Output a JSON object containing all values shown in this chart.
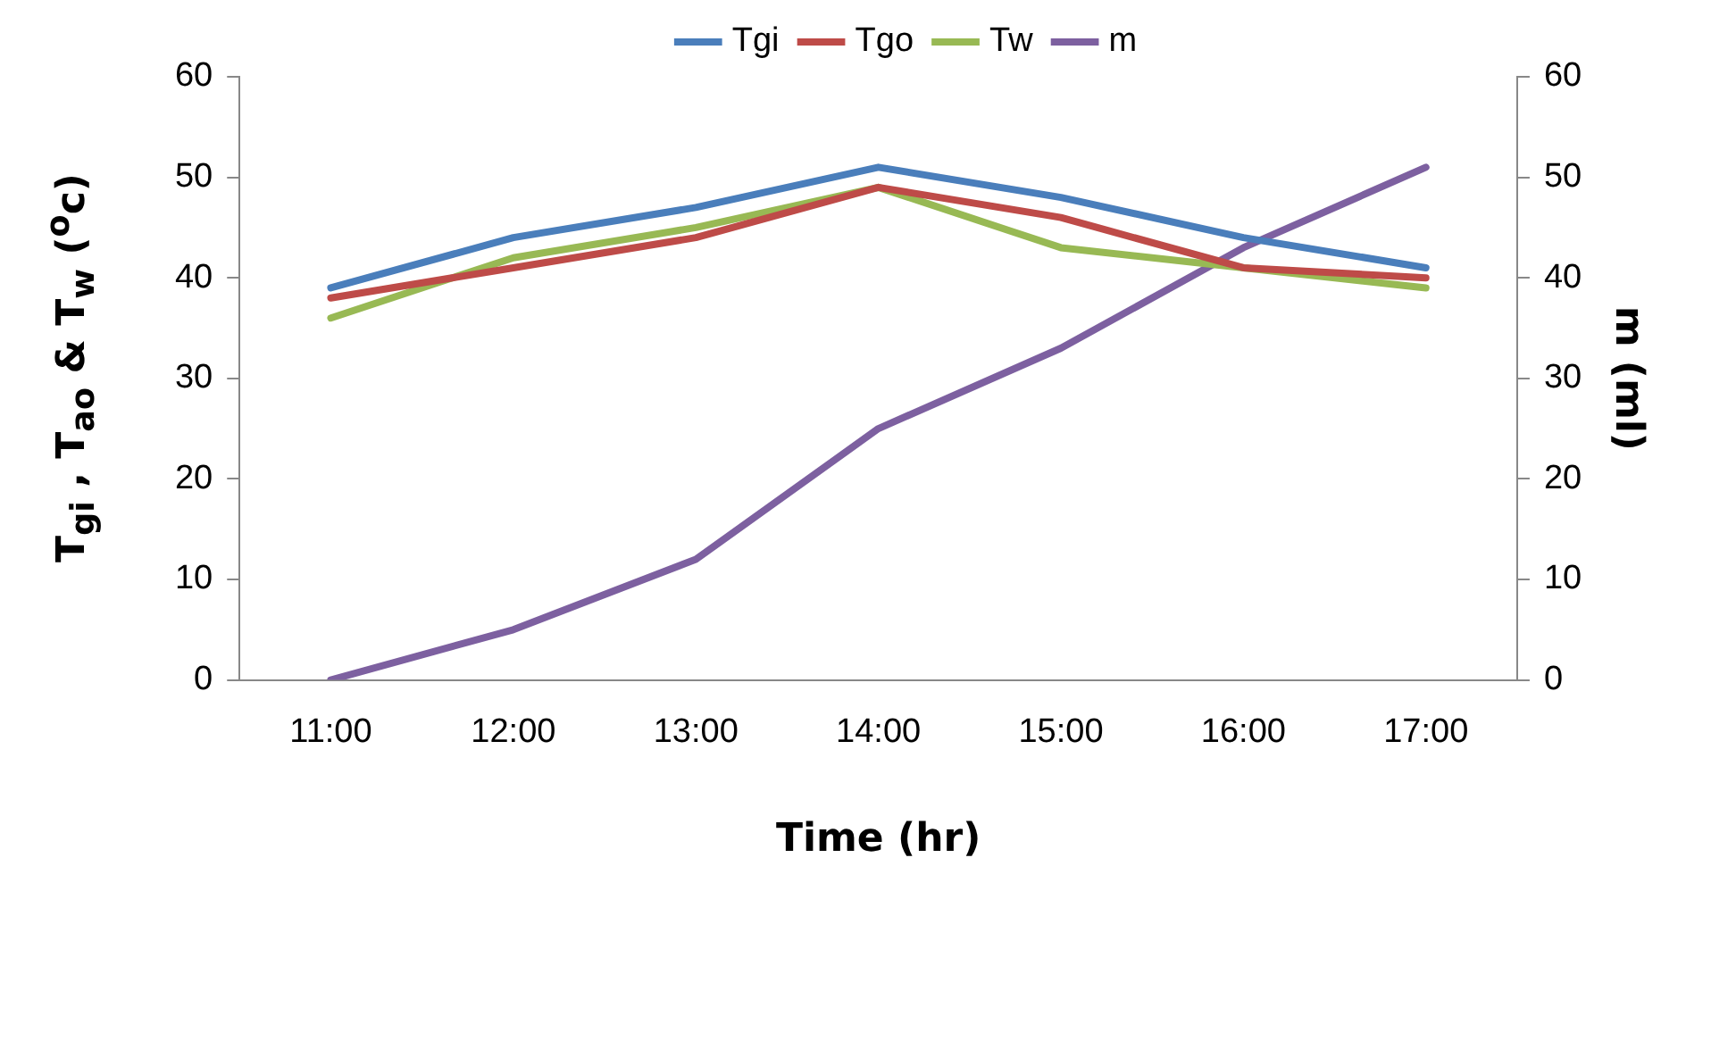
{
  "chart_data": {
    "type": "line",
    "xlabel": "Time (hr)",
    "ylabel": "T$_{gi}$ , T$_{ao}$ & T$_{w}$  ($^{o}$c)",
    "y2label": "m (ml)",
    "categories": [
      "11:00",
      "12:00",
      "13:00",
      "14:00",
      "15:00",
      "16:00",
      "17:00"
    ],
    "series": [
      {
        "name": "Tgi",
        "color": "#4a7ebb",
        "values": [
          39,
          44,
          47,
          51,
          48,
          44,
          41
        ]
      },
      {
        "name": "Tgo",
        "color": "#be4b48",
        "values": [
          38,
          41,
          44,
          49,
          46,
          41,
          40
        ]
      },
      {
        "name": "Tw",
        "color": "#98b954",
        "values": [
          36,
          42,
          45,
          49,
          43,
          41,
          39
        ]
      },
      {
        "name": "m",
        "color": "#7d60a0",
        "axis": "y2",
        "values": [
          0,
          5,
          12,
          25,
          33,
          43,
          51
        ]
      }
    ],
    "ylim": [
      0,
      60
    ],
    "yticks": [
      0,
      10,
      20,
      30,
      40,
      50,
      60
    ],
    "y2lim": [
      0,
      60
    ],
    "y2ticks": [
      0,
      10,
      20,
      30,
      40,
      50,
      60
    ],
    "grid": false,
    "legend": "top",
    "marker": "none",
    "line_style": "solid"
  }
}
